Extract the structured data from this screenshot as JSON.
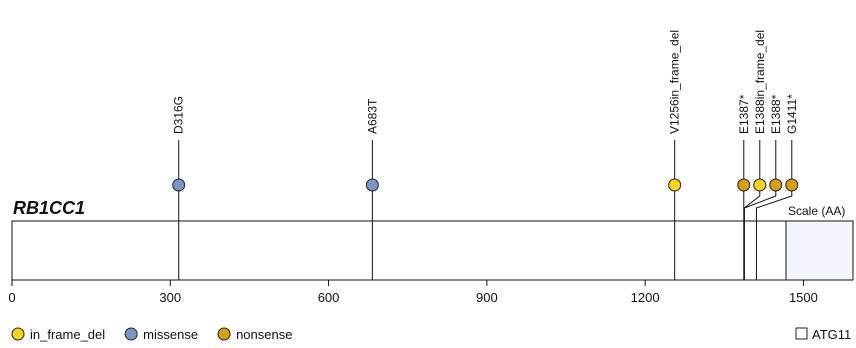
{
  "gene": "RB1CC1",
  "protein_length": 1594,
  "domains": [
    {
      "label": "ATG11",
      "start": 1467,
      "end": 1594,
      "fill": "#f2f6fc"
    }
  ],
  "scale_label": "Scale (AA)",
  "axis": {
    "ticks": [
      0,
      300,
      600,
      900,
      1200,
      1500
    ]
  },
  "colors": {
    "in_frame_del": "#f8d31a",
    "missense": "#7b95c9",
    "nonsense": "#d6a10d"
  },
  "mutations": [
    {
      "label": "D316G",
      "position": 316,
      "type": "missense"
    },
    {
      "label": "A683T",
      "position": 683,
      "type": "missense"
    },
    {
      "label": "V1256in_frame_del",
      "position": 1256,
      "type": "in_frame_del"
    },
    {
      "label": "E1387*",
      "position": 1387,
      "type": "nonsense"
    },
    {
      "label": "E1388in_frame_del",
      "position": 1388,
      "type": "in_frame_del"
    },
    {
      "label": "E1388*",
      "position": 1388,
      "type": "nonsense"
    },
    {
      "label": "G1411*",
      "position": 1411,
      "type": "nonsense"
    }
  ],
  "legend": [
    {
      "key": "in_frame_del",
      "label": "in_frame_del"
    },
    {
      "key": "missense",
      "label": "missense"
    },
    {
      "key": "nonsense",
      "label": "nonsense"
    }
  ],
  "domain_legend": [
    {
      "label": "ATG11"
    }
  ]
}
